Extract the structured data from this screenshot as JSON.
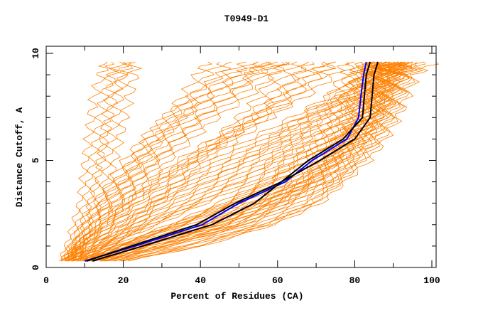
{
  "chart_data": {
    "type": "line",
    "title": "T0949-D1",
    "xlabel": "Percent of Residues (CA)",
    "ylabel": "Distance Cutoff, A",
    "xlim": [
      0,
      101.5
    ],
    "ylim": [
      0,
      10.3
    ],
    "x_ticks": [
      0,
      20,
      40,
      60,
      80,
      100
    ],
    "y_ticks": [
      0,
      5,
      10
    ],
    "grid": false,
    "legend": "none",
    "colors": {
      "orange": "#ff8000",
      "blue": "#0000ff",
      "black": "#000000"
    },
    "y_levels": [
      0.3,
      1,
      2,
      3,
      4,
      5,
      6,
      7,
      8,
      9,
      9.6
    ],
    "orange_series_x": [
      [
        4,
        6,
        8,
        10,
        11,
        12,
        13,
        14,
        15,
        17,
        19
      ],
      [
        5,
        7,
        10,
        13,
        15,
        16,
        17,
        18,
        19,
        20,
        20
      ],
      [
        5,
        8,
        12,
        16,
        20,
        24,
        28,
        33,
        38,
        42,
        45
      ],
      [
        6,
        9,
        14,
        20,
        25,
        30,
        36,
        42,
        50,
        56,
        60
      ],
      [
        6,
        10,
        16,
        22,
        28,
        36,
        45,
        55,
        65,
        72,
        75
      ],
      [
        7,
        12,
        20,
        28,
        36,
        45,
        55,
        66,
        76,
        82,
        85
      ],
      [
        7,
        13,
        24,
        34,
        44,
        53,
        62,
        70,
        78,
        85,
        88
      ],
      [
        8,
        15,
        28,
        40,
        52,
        60,
        68,
        75,
        80,
        84,
        87
      ],
      [
        9,
        18,
        33,
        46,
        56,
        64,
        72,
        78,
        82,
        86,
        88
      ],
      [
        10,
        20,
        36,
        50,
        60,
        67,
        75,
        80,
        84,
        87,
        89
      ],
      [
        11,
        22,
        40,
        54,
        64,
        70,
        77,
        82,
        85,
        88,
        90
      ],
      [
        12,
        25,
        44,
        57,
        67,
        73,
        79,
        84,
        87,
        89,
        91
      ],
      [
        14,
        28,
        48,
        60,
        70,
        76,
        81,
        85,
        88,
        90,
        92
      ],
      [
        16,
        32,
        52,
        64,
        73,
        78,
        83,
        87,
        89,
        91,
        93
      ],
      [
        18,
        36,
        56,
        68,
        75,
        80,
        85,
        88,
        90,
        92,
        95
      ],
      [
        20,
        40,
        58,
        70,
        76,
        82,
        86,
        89,
        91,
        93,
        98
      ],
      [
        6,
        9,
        13,
        18,
        22,
        27,
        32,
        38,
        45,
        52,
        58
      ],
      [
        5,
        8,
        11,
        14,
        18,
        22,
        27,
        33,
        40,
        48,
        55
      ],
      [
        8,
        14,
        22,
        30,
        40,
        50,
        60,
        68,
        76,
        80,
        83
      ],
      [
        9,
        16,
        26,
        38,
        48,
        58,
        66,
        74,
        80,
        83,
        85
      ],
      [
        12,
        24,
        42,
        55,
        65,
        72,
        78,
        82,
        85,
        87,
        88
      ],
      [
        15,
        30,
        50,
        62,
        70,
        75,
        80,
        84,
        86,
        88,
        90
      ],
      [
        7,
        11,
        18,
        26,
        34,
        40,
        48,
        56,
        62,
        68,
        72
      ],
      [
        6,
        9,
        15,
        22,
        30,
        38,
        46,
        52,
        58,
        62,
        65
      ],
      [
        10,
        19,
        34,
        48,
        58,
        66,
        73,
        79,
        83,
        86,
        87
      ],
      [
        13,
        26,
        46,
        58,
        68,
        74,
        79,
        83,
        86,
        88,
        89
      ]
    ],
    "highlight_series": [
      {
        "name": "blue",
        "color": "#0000ff",
        "x": [
          10,
          23,
          40.5,
          50,
          62,
          69,
          78,
          81,
          81.6,
          82.3,
          83
        ]
      },
      {
        "name": "black-1",
        "color": "#000000",
        "x": [
          12,
          25,
          43,
          54,
          61,
          71,
          80,
          84,
          84.5,
          85,
          86
        ]
      },
      {
        "name": "black-2",
        "color": "#000000",
        "x": [
          10.5,
          22,
          39,
          49,
          61,
          68,
          77,
          82,
          82.5,
          83,
          84
        ]
      }
    ]
  }
}
